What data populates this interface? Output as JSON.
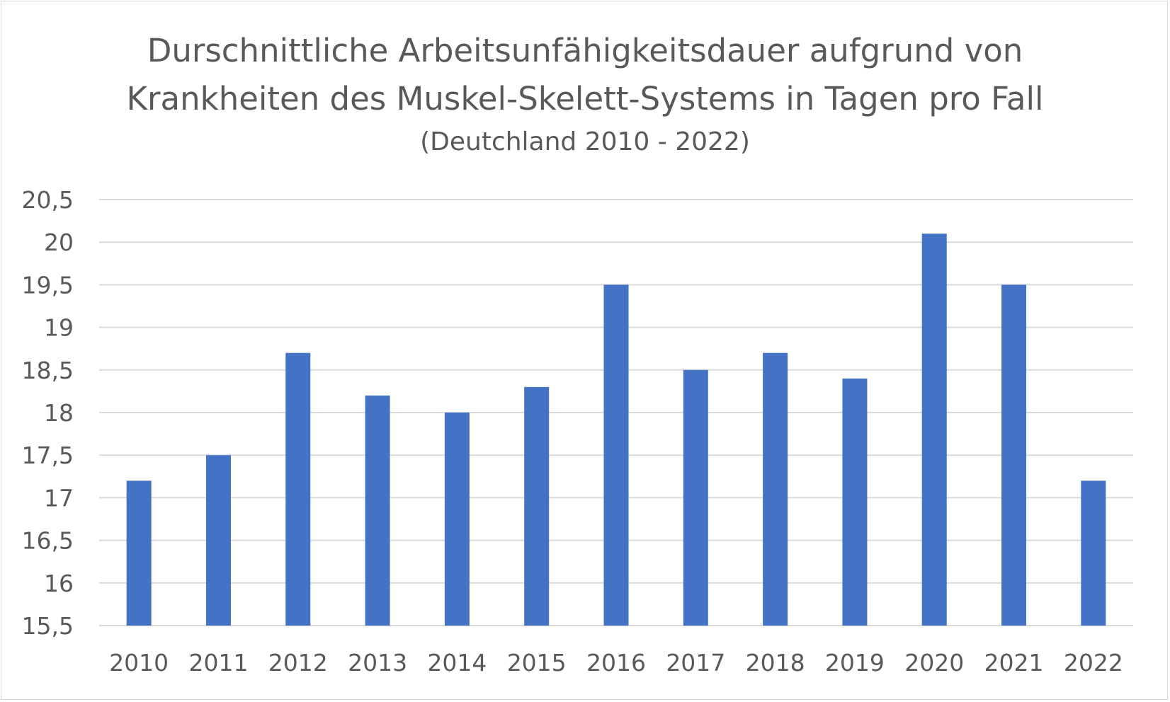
{
  "chart_data": {
    "type": "bar",
    "title_lines": [
      "Durschnittliche Arbeitsunfähigkeitsdauer aufgrund von",
      "Krankheiten des Muskel-Skelett-Systems in Tagen pro Fall"
    ],
    "subtitle": "(Deutchland 2010 - 2022)",
    "categories": [
      "2010",
      "2011",
      "2012",
      "2013",
      "2014",
      "2015",
      "2016",
      "2017",
      "2018",
      "2019",
      "2020",
      "2021",
      "2022"
    ],
    "values": [
      17.2,
      17.5,
      18.7,
      18.2,
      18.0,
      18.3,
      19.5,
      18.5,
      18.7,
      18.4,
      20.1,
      19.5,
      17.2
    ],
    "ylim": [
      15.5,
      20.5
    ],
    "yticks": [
      15.5,
      16,
      16.5,
      17,
      17.5,
      18,
      18.5,
      19,
      19.5,
      20,
      20.5
    ],
    "ytick_labels": [
      "15,5",
      "16",
      "16,5",
      "17",
      "17,5",
      "18",
      "18,5",
      "19",
      "19,5",
      "20",
      "20,5"
    ],
    "bar_color": "#4472C4",
    "grid_color": "#d9d9d9",
    "grid": true,
    "legend": "none"
  }
}
